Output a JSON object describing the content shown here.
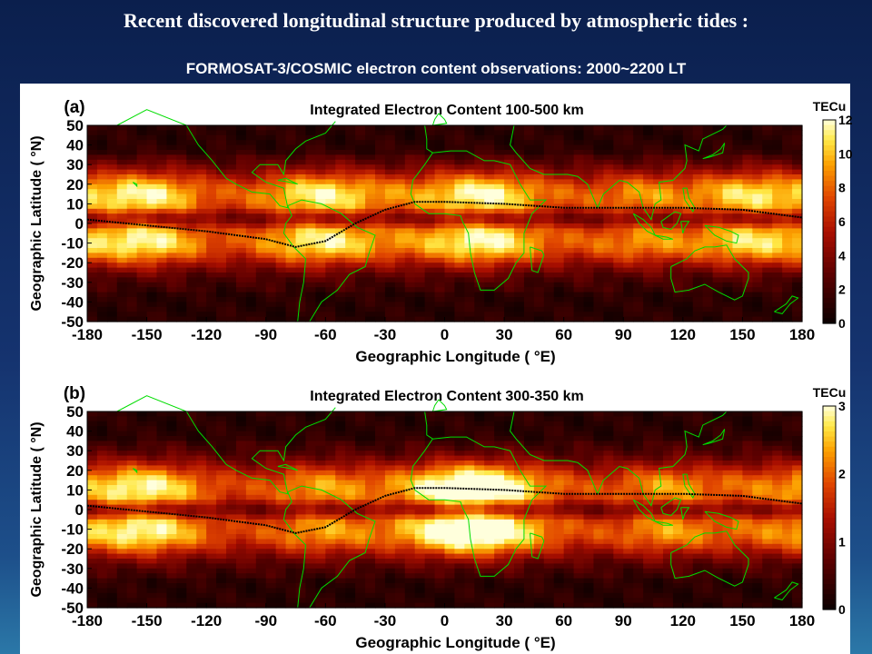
{
  "slide": {
    "title": "Recent discovered longitudinal structure produced by atmospheric tides :",
    "subtitle": "FORMOSAT-3/COSMIC electron content observations: 2000~2200 LT"
  },
  "chart_data": [
    {
      "type": "heatmap",
      "panel_label": "(a)",
      "title": "Integrated Electron Content  100-500 km",
      "xlabel": "Geographic Longitude ( °E)",
      "ylabel": "Geographic Latitude ( °N)",
      "x_ticks": [
        -180,
        -150,
        -120,
        -90,
        -60,
        -30,
        0,
        30,
        60,
        90,
        120,
        150,
        180
      ],
      "y_ticks": [
        50,
        40,
        30,
        20,
        10,
        0,
        -10,
        -20,
        -30,
        -40,
        -50
      ],
      "xlim": [
        -180,
        180
      ],
      "ylim": [
        -50,
        50
      ],
      "colorbar": {
        "label": "TECu",
        "ticks": [
          0,
          2,
          4,
          6,
          8,
          10,
          12
        ],
        "range": [
          0,
          12
        ]
      },
      "north_crest_lat": 15,
      "south_crest_lat": -10,
      "crest_peaks_lon": [
        -150,
        -75,
        -55,
        20,
        100,
        150
      ],
      "magnetic_equator": [
        [
          -180,
          2
        ],
        [
          -150,
          -1
        ],
        [
          -120,
          -4
        ],
        [
          -90,
          -8
        ],
        [
          -75,
          -12
        ],
        [
          -60,
          -9
        ],
        [
          -45,
          0
        ],
        [
          -30,
          7
        ],
        [
          -15,
          11
        ],
        [
          0,
          11
        ],
        [
          30,
          10
        ],
        [
          60,
          8
        ],
        [
          90,
          8
        ],
        [
          120,
          8
        ],
        [
          150,
          7
        ],
        [
          180,
          3
        ]
      ],
      "colors": {
        "coast": "#00dd00",
        "equator": "#000000"
      }
    },
    {
      "type": "heatmap",
      "panel_label": "(b)",
      "title": "Integrated Electron Content  300-350 km",
      "xlabel": "Geographic Longitude ( °E)",
      "ylabel": "Geographic Latitude ( °N)",
      "x_ticks": [
        -180,
        -150,
        -120,
        -90,
        -60,
        -30,
        0,
        30,
        60,
        90,
        120,
        150,
        180
      ],
      "y_ticks": [
        50,
        40,
        30,
        20,
        10,
        0,
        -10,
        -20,
        -30,
        -40,
        -50
      ],
      "xlim": [
        -180,
        180
      ],
      "ylim": [
        -50,
        50
      ],
      "colorbar": {
        "label": "TECu",
        "ticks": [
          0,
          1,
          2,
          3
        ],
        "range": [
          0,
          3
        ]
      },
      "north_crest_lat": 12,
      "south_crest_lat": -12,
      "crest_peaks_lon": [
        -150,
        -65,
        5,
        25,
        110
      ],
      "magnetic_equator": [
        [
          -180,
          2
        ],
        [
          -150,
          -1
        ],
        [
          -120,
          -4
        ],
        [
          -90,
          -8
        ],
        [
          -75,
          -12
        ],
        [
          -60,
          -9
        ],
        [
          -45,
          0
        ],
        [
          -30,
          7
        ],
        [
          -15,
          11
        ],
        [
          0,
          11
        ],
        [
          30,
          10
        ],
        [
          60,
          8
        ],
        [
          90,
          8
        ],
        [
          120,
          8
        ],
        [
          150,
          7
        ],
        [
          180,
          3
        ]
      ],
      "colors": {
        "coast": "#00dd00",
        "equator": "#000000"
      }
    }
  ]
}
